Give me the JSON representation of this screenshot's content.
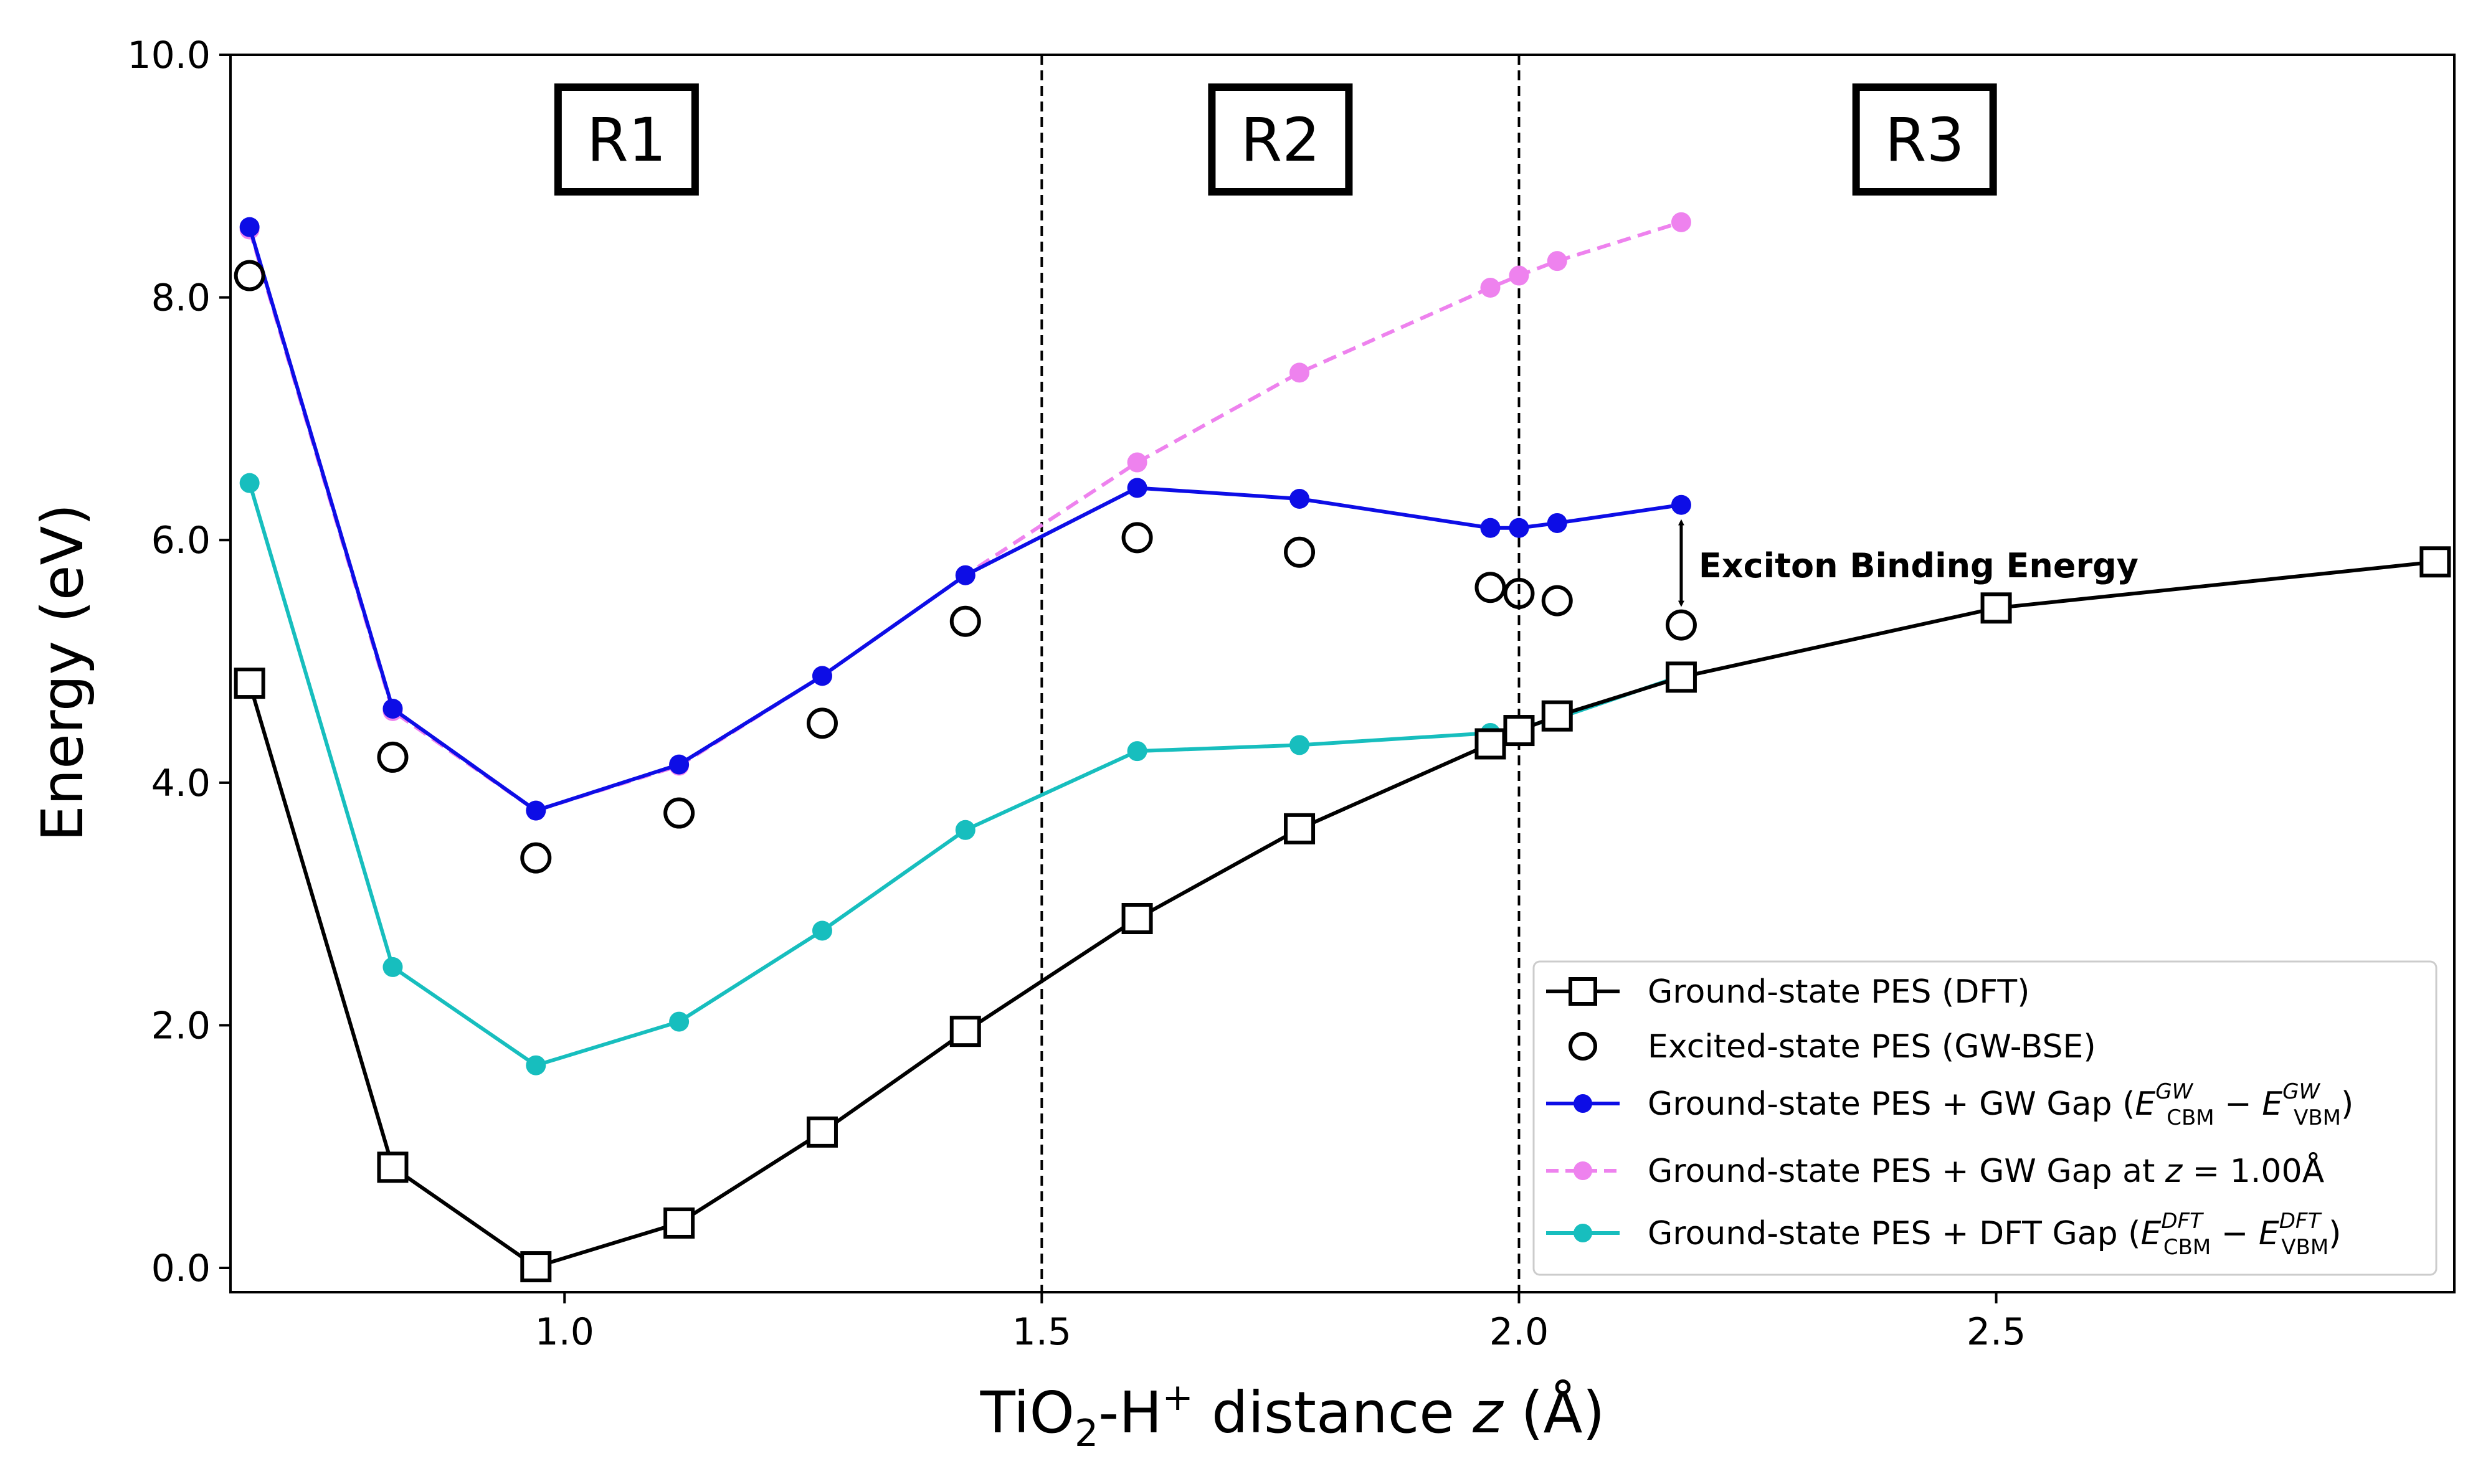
{
  "chart_data": {
    "type": "line",
    "title": "",
    "xlabel": "TiO₂-H⁺ distance z (Å)",
    "ylabel": "Energy (eV)",
    "xlim": [
      0.65,
      2.98
    ],
    "ylim": [
      -0.2,
      10.0
    ],
    "xticks": [
      1.0,
      1.5,
      2.0,
      2.5
    ],
    "xtick_labels": [
      "1.0",
      "1.5",
      "2.0",
      "2.5"
    ],
    "yticks": [
      0,
      2,
      4,
      6,
      8,
      10
    ],
    "ytick_labels": [
      "0.0",
      "2.0",
      "4.0",
      "6.0",
      "8.0",
      "10.0"
    ],
    "vlines": [
      1.5,
      2.0
    ],
    "regions": [
      {
        "label": "R1",
        "x": 1.065
      },
      {
        "label": "R2",
        "x": 1.75
      },
      {
        "label": "R3",
        "x": 2.425
      }
    ],
    "series": [
      {
        "name": "Ground-state PES (DFT)",
        "style": "line-square",
        "color": "#000000",
        "x": [
          0.67,
          0.82,
          0.97,
          1.12,
          1.27,
          1.42,
          1.6,
          1.77,
          1.97,
          2.0,
          2.04,
          2.17,
          2.5,
          2.96
        ],
        "y": [
          4.82,
          0.83,
          0.01,
          0.37,
          1.12,
          1.95,
          2.88,
          3.62,
          4.32,
          4.43,
          4.55,
          4.87,
          5.44,
          5.82
        ]
      },
      {
        "name": "Excited-state PES (GW-BSE)",
        "style": "open-circle",
        "color": "#000000",
        "x": [
          0.67,
          0.82,
          0.97,
          1.12,
          1.27,
          1.42,
          1.6,
          1.77,
          1.97,
          2.0,
          2.04,
          2.17
        ],
        "y": [
          8.18,
          4.21,
          3.38,
          3.75,
          4.49,
          5.33,
          6.02,
          5.9,
          5.61,
          5.56,
          5.5,
          5.3
        ]
      },
      {
        "name": "Ground-state PES + GW Gap",
        "style": "line-dot",
        "color": "#0d0de6",
        "x": [
          0.67,
          0.82,
          0.97,
          1.12,
          1.27,
          1.42,
          1.6,
          1.77,
          1.97,
          2.0,
          2.04,
          2.17
        ],
        "y": [
          8.58,
          4.61,
          3.77,
          4.15,
          4.88,
          5.71,
          6.43,
          6.34,
          6.1,
          6.1,
          6.14,
          6.29
        ]
      },
      {
        "name": "Ground-state PES + GW Gap at z = 1.00Å",
        "style": "dashed-dot",
        "color": "#ee82ee",
        "x": [
          0.67,
          0.82,
          0.97,
          1.12,
          1.27,
          1.42,
          1.6,
          1.77,
          1.97,
          2.0,
          2.04,
          2.17
        ],
        "y": [
          8.56,
          4.59,
          3.77,
          4.14,
          4.88,
          5.71,
          6.64,
          7.38,
          8.08,
          8.18,
          8.3,
          8.62
        ]
      },
      {
        "name": "Ground-state PES + DFT Gap",
        "style": "line-dot",
        "color": "#17bebe",
        "x": [
          0.67,
          0.82,
          0.97,
          1.12,
          1.27,
          1.42,
          1.6,
          1.77,
          1.97,
          2.0,
          2.04,
          2.17
        ],
        "y": [
          6.47,
          2.48,
          1.67,
          2.03,
          2.78,
          3.61,
          4.26,
          4.31,
          4.41,
          4.45,
          4.53,
          4.88
        ]
      }
    ],
    "legend": {
      "position": "lower right",
      "entries": [
        {
          "base": "Ground-state PES (DFT)"
        },
        {
          "base": "Excited-state PES (GW-BSE)"
        },
        {
          "base": "Ground-state PES + GW Gap (",
          "sup1": "GW",
          "sub1": "CBM",
          "sup2": "GW",
          "sub2": "VBM",
          "letter": "E",
          "minus": " − ",
          "close": ")"
        },
        {
          "base": "Ground-state PES + GW Gap at ",
          "z_var": "z",
          "z_rest": " = 1.00Å"
        },
        {
          "base": "Ground-state PES + DFT Gap (",
          "sup1": "DFT",
          "sub1": "CBM",
          "sup2": "DFT",
          "sub2": "VBM",
          "letter": "E",
          "minus": " − ",
          "close": ")"
        }
      ]
    },
    "annotation": {
      "text": "Exciton Binding Energy",
      "x": 2.17,
      "y_top": 6.29,
      "y_bottom": 5.3
    }
  }
}
